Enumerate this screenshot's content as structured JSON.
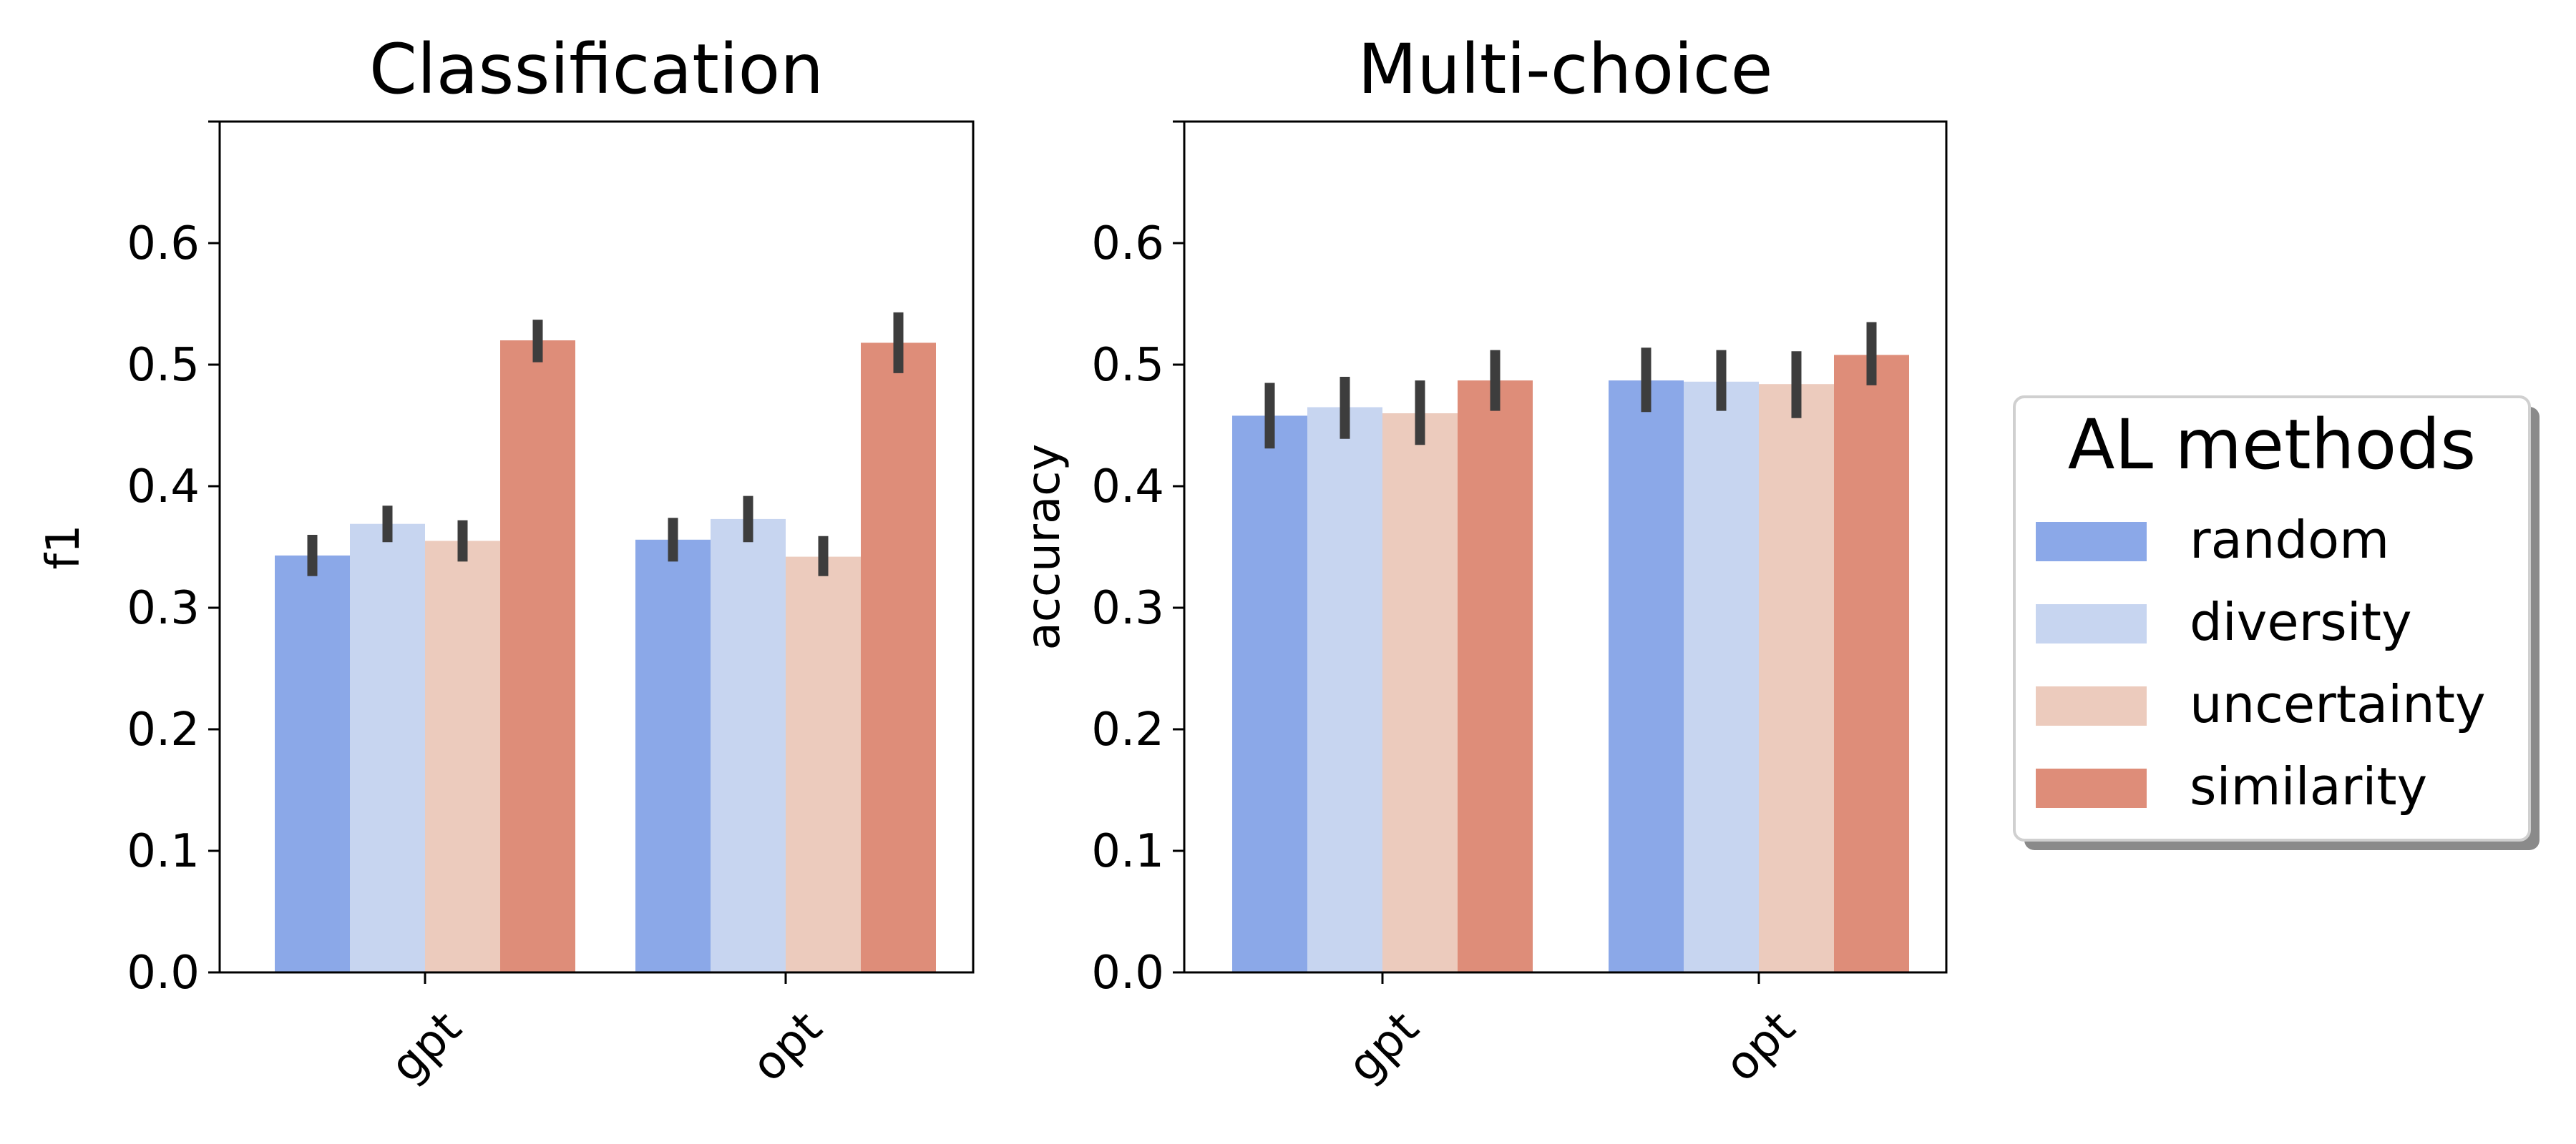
{
  "chart_data": [
    {
      "type": "bar",
      "title": "Classification",
      "xlabel": "",
      "ylabel": "f1",
      "ylim": [
        0,
        0.7
      ],
      "yticks": [
        "0.0",
        "0.1",
        "0.2",
        "0.3",
        "0.4",
        "0.5",
        "0.6"
      ],
      "categories": [
        "gpt",
        "opt"
      ],
      "series": [
        {
          "name": "random",
          "values": [
            0.343,
            0.356
          ],
          "err_low": [
            0.326,
            0.338
          ],
          "err_high": [
            0.36,
            0.374
          ]
        },
        {
          "name": "diversity",
          "values": [
            0.369,
            0.373
          ],
          "err_low": [
            0.354,
            0.354
          ],
          "err_high": [
            0.384,
            0.392
          ]
        },
        {
          "name": "uncertainty",
          "values": [
            0.355,
            0.342
          ],
          "err_low": [
            0.338,
            0.326
          ],
          "err_high": [
            0.372,
            0.359
          ]
        },
        {
          "name": "similarity",
          "values": [
            0.52,
            0.518
          ],
          "err_low": [
            0.502,
            0.493
          ],
          "err_high": [
            0.537,
            0.543
          ]
        }
      ]
    },
    {
      "type": "bar",
      "title": "Multi-choice",
      "xlabel": "",
      "ylabel": "accuracy",
      "ylim": [
        0,
        0.7
      ],
      "yticks": [
        "0.0",
        "0.1",
        "0.2",
        "0.3",
        "0.4",
        "0.5",
        "0.6"
      ],
      "categories": [
        "gpt",
        "opt"
      ],
      "series": [
        {
          "name": "random",
          "values": [
            0.458,
            0.487
          ],
          "err_low": [
            0.431,
            0.461
          ],
          "err_high": [
            0.485,
            0.514
          ]
        },
        {
          "name": "diversity",
          "values": [
            0.465,
            0.486
          ],
          "err_low": [
            0.439,
            0.462
          ],
          "err_high": [
            0.49,
            0.512
          ]
        },
        {
          "name": "uncertainty",
          "values": [
            0.46,
            0.484
          ],
          "err_low": [
            0.434,
            0.456
          ],
          "err_high": [
            0.487,
            0.511
          ]
        },
        {
          "name": "similarity",
          "values": [
            0.487,
            0.508
          ],
          "err_low": [
            0.462,
            0.483
          ],
          "err_high": [
            0.512,
            0.535
          ]
        }
      ]
    }
  ],
  "legend": {
    "title": "AL methods",
    "entries": [
      "random",
      "diversity",
      "uncertainty",
      "similarity"
    ]
  },
  "colors": {
    "random": "#8ba8e8",
    "diversity": "#c7d5f0",
    "uncertainty": "#eccbbd",
    "similarity": "#de8d79",
    "errorbar": "#3d3d3d"
  }
}
